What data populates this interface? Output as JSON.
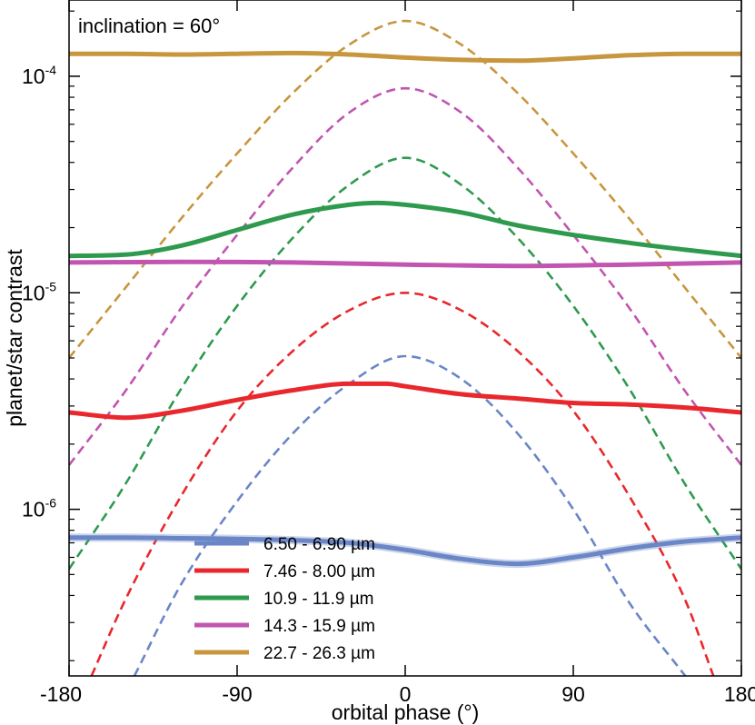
{
  "chart_data": {
    "type": "line",
    "annotation": "inclination = 60°",
    "xlabel": "orbital phase (°)",
    "ylabel": "planet/star contrast",
    "xlim": [
      -180,
      180
    ],
    "ylim": [
      1.7e-07,
      0.000225
    ],
    "yscale": "log",
    "x_ticks": [
      -180,
      -90,
      0,
      90,
      180
    ],
    "x_tick_labels": [
      "-180",
      "-90",
      "0",
      "90",
      "180"
    ],
    "y_ticks": [
      1e-06,
      1e-05,
      0.0001
    ],
    "y_tick_labels": [
      {
        "base": "10",
        "exp": "-6"
      },
      {
        "base": "10",
        "exp": "-5"
      },
      {
        "base": "10",
        "exp": "-4"
      }
    ],
    "legend_position": "bottom-left",
    "series": [
      {
        "name": "6.50 - 6.90 µm",
        "color": "#6a86c6",
        "solid": {
          "x": [
            -180,
            -150,
            -120,
            -90,
            -60,
            -30,
            0,
            30,
            60,
            90,
            120,
            150,
            180
          ],
          "y": [
            7.4e-07,
            7.4e-07,
            7.35e-07,
            7.3e-07,
            7.2e-07,
            7e-07,
            6.5e-07,
            5.9e-07,
            5.6e-07,
            6e-07,
            6.6e-07,
            7.1e-07,
            7.4e-07
          ]
        },
        "dashed": {
          "x": [
            -145,
            -120,
            -90,
            -60,
            -30,
            0,
            30,
            60,
            90,
            120,
            150
          ],
          "y": [
            1.7e-07,
            4.5e-07,
            1.09e-06,
            2.25e-06,
            3.8e-06,
            5.1e-06,
            4e-06,
            2.25e-06,
            1e-06,
            3.7e-07,
            1.7e-07
          ]
        }
      },
      {
        "name": "7.46 - 8.00 µm",
        "color": "#e8282d",
        "solid": {
          "x": [
            -180,
            -150,
            -120,
            -90,
            -60,
            -30,
            -10,
            0,
            30,
            60,
            90,
            120,
            150,
            180
          ],
          "y": [
            2.8e-06,
            2.65e-06,
            2.85e-06,
            3.2e-06,
            3.55e-06,
            3.8e-06,
            3.8e-06,
            3.7e-06,
            3.4e-06,
            3.25e-06,
            3.1e-06,
            3.05e-06,
            2.95e-06,
            2.8e-06
          ]
        },
        "dashed": {
          "x": [
            -168,
            -150,
            -120,
            -90,
            -60,
            -30,
            0,
            30,
            60,
            90,
            120,
            150,
            165
          ],
          "y": [
            1.7e-07,
            3.8e-07,
            1.15e-06,
            2.85e-06,
            5.4e-06,
            8.3e-06,
            1e-05,
            8.3e-06,
            5.4e-06,
            2.85e-06,
            1.15e-06,
            3.8e-07,
            1.7e-07
          ]
        }
      },
      {
        "name": "10.9 - 11.9 µm",
        "color": "#2e9a4e",
        "solid": {
          "x": [
            -180,
            -150,
            -120,
            -90,
            -60,
            -30,
            -15,
            0,
            30,
            60,
            90,
            120,
            150,
            180
          ],
          "y": [
            1.48e-05,
            1.5e-05,
            1.65e-05,
            1.95e-05,
            2.3e-05,
            2.55e-05,
            2.6e-05,
            2.55e-05,
            2.35e-05,
            2.05e-05,
            1.85e-05,
            1.7e-05,
            1.58e-05,
            1.48e-05
          ]
        },
        "dashed": {
          "x": [
            -180,
            -150,
            -120,
            -90,
            -60,
            -30,
            0,
            30,
            60,
            90,
            120,
            150,
            180
          ],
          "y": [
            5.3e-07,
            1.3e-06,
            3.6e-06,
            8.7e-06,
            1.8e-05,
            3.15e-05,
            4.2e-05,
            3.15e-05,
            1.8e-05,
            8.7e-06,
            3.6e-06,
            1.3e-06,
            5.3e-07
          ]
        }
      },
      {
        "name": "14.3 - 15.9 µm",
        "color": "#c155b0",
        "solid": {
          "x": [
            -180,
            -120,
            -60,
            0,
            60,
            120,
            180
          ],
          "y": [
            1.38e-05,
            1.39e-05,
            1.38e-05,
            1.35e-05,
            1.33e-05,
            1.35e-05,
            1.38e-05
          ]
        },
        "dashed": {
          "x": [
            -180,
            -150,
            -120,
            -90,
            -60,
            -30,
            0,
            30,
            60,
            90,
            120,
            150,
            180
          ],
          "y": [
            1.6e-06,
            3.5e-06,
            8.5e-06,
            1.85e-05,
            3.8e-05,
            6.8e-05,
            8.8e-05,
            6.8e-05,
            3.8e-05,
            1.85e-05,
            8.5e-06,
            3.5e-06,
            1.6e-06
          ]
        }
      },
      {
        "name": "22.7 - 26.3 µm",
        "color": "#c7963d",
        "solid": {
          "x": [
            -180,
            -150,
            -120,
            -90,
            -60,
            -30,
            0,
            30,
            60,
            90,
            120,
            150,
            180
          ],
          "y": [
            0.000127,
            0.000127,
            0.000126,
            0.000127,
            0.000128,
            0.000126,
            0.000122,
            0.000119,
            0.000118,
            0.000121,
            0.000125,
            0.000127,
            0.000127
          ]
        },
        "dashed": {
          "x": [
            -180,
            -150,
            -120,
            -90,
            -60,
            -30,
            0,
            30,
            60,
            90,
            120,
            150,
            180
          ],
          "y": [
            5e-06,
            1.05e-05,
            2.2e-05,
            4.4e-05,
            8.4e-05,
            0.00014,
            0.00018,
            0.00014,
            8.4e-05,
            4.4e-05,
            2.2e-05,
            1.05e-05,
            5e-06
          ]
        }
      }
    ]
  }
}
